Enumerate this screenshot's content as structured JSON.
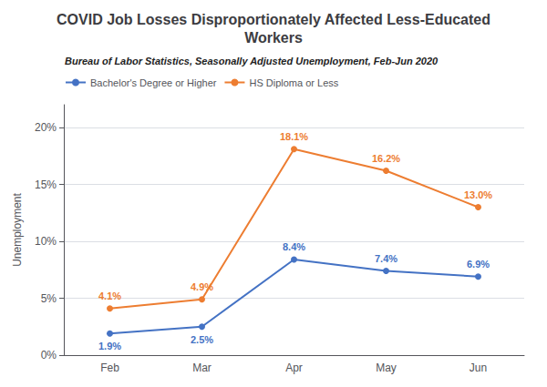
{
  "chart_data": {
    "type": "line",
    "title": "COVID Job Losses Disproportionately Affected Less-Educated\nWorkers",
    "subtitle": "Bureau of Labor Statistics, Seasonally Adjusted Unemployment, Feb-Jun 2020",
    "categories": [
      "Feb",
      "Mar",
      "Apr",
      "May",
      "Jun"
    ],
    "series": [
      {
        "name": "Bachelor's Degree or Higher",
        "color": "#4472C4",
        "marker": "circle",
        "values": [
          1.9,
          2.5,
          8.4,
          7.4,
          6.9
        ],
        "value_labels": [
          "1.9%",
          "2.5%",
          "8.4%",
          "7.4%",
          "6.9%"
        ]
      },
      {
        "name": "HS Diploma or Less",
        "color": "#ED7D31",
        "marker": "circle",
        "values": [
          4.1,
          4.9,
          18.1,
          16.2,
          13.0
        ],
        "value_labels": [
          "4.1%",
          "4.9%",
          "18.1%",
          "16.2%",
          "13.0%"
        ]
      }
    ],
    "ylabel": "Unemployment",
    "ylim": [
      0,
      22
    ],
    "yticks": [
      {
        "value": 0,
        "label": "0%"
      },
      {
        "value": 5,
        "label": "5%"
      },
      {
        "value": 10,
        "label": "10%"
      },
      {
        "value": 15,
        "label": "15%"
      },
      {
        "value": 20,
        "label": "20%"
      }
    ],
    "grid": true,
    "legend": "upper left",
    "data_labels": true
  }
}
